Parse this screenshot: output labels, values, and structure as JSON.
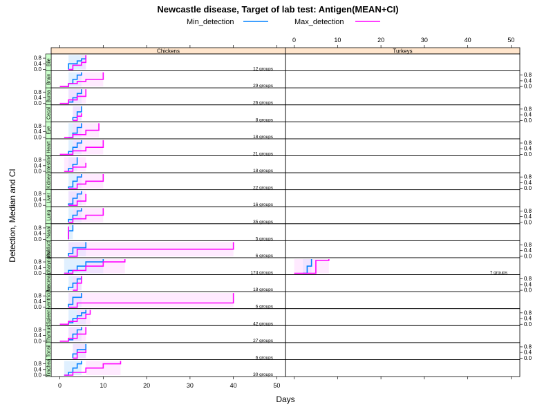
{
  "chart_data": {
    "type": "line",
    "title": "Newcastle disease, Target of lab test: Antigen(MEAN+CI)",
    "xlabel": "Days",
    "ylabel": "Detection, Median and CI",
    "xlim": [
      0,
      50
    ],
    "ylim": [
      0,
      1
    ],
    "x_ticks": [
      0,
      10,
      20,
      30,
      40,
      50
    ],
    "y_ticks": [
      "0.0",
      "0.4",
      "0.8"
    ],
    "legend": {
      "position": "top",
      "entries": [
        {
          "name": "Min_detection",
          "color": "#0080ff"
        },
        {
          "name": "Max_detection",
          "color": "#ff00ff"
        }
      ]
    },
    "panels": [
      "Chickens",
      "Turkeys"
    ],
    "rows": [
      {
        "strip": "Bile",
        "groups": {
          "Chickens": "12 groups"
        },
        "series": {
          "Chickens": {
            "Min_detection": {
              "x": [
                2,
                2,
                4,
                5,
                6
              ],
              "y": [
                0,
                0.4,
                0.6,
                0.75,
                1
              ]
            },
            "Max_detection": {
              "x": [
                2,
                3,
                5,
                6,
                6
              ],
              "y": [
                0,
                0.3,
                0.5,
                0.8,
                1
              ]
            }
          }
        }
      },
      {
        "strip": "Brain",
        "groups": {
          "Chickens": "29 groups"
        },
        "series": {
          "Chickens": {
            "Min_detection": {
              "x": [
                2,
                3,
                4,
                5
              ],
              "y": [
                0.2,
                0.5,
                0.8,
                1
              ]
            },
            "Max_detection": {
              "x": [
                0,
                2,
                4,
                6,
                10
              ],
              "y": [
                0,
                0.2,
                0.35,
                0.5,
                1
              ]
            }
          }
        }
      },
      {
        "strip": "Bursa",
        "groups": {
          "Chickens": "26 groups"
        },
        "series": {
          "Chickens": {
            "Min_detection": {
              "x": [
                2,
                3,
                4,
                5
              ],
              "y": [
                0.1,
                0.4,
                0.7,
                1
              ]
            },
            "Max_detection": {
              "x": [
                0,
                2,
                4,
                6
              ],
              "y": [
                0,
                0.25,
                0.5,
                1
              ]
            }
          }
        }
      },
      {
        "strip": "Cecal",
        "groups": {
          "Chickens": "8 groups"
        },
        "series": {
          "Chickens": {
            "Min_detection": {
              "x": [
                3,
                4,
                5
              ],
              "y": [
                0.2,
                0.6,
                1
              ]
            },
            "Max_detection": {
              "x": [
                3,
                4,
                5
              ],
              "y": [
                0,
                0.3,
                0.5
              ]
            }
          }
        }
      },
      {
        "strip": "Eye",
        "groups": {
          "Chickens": "18 groups"
        },
        "series": {
          "Chickens": {
            "Min_detection": {
              "x": [
                2,
                3,
                4,
                5
              ],
              "y": [
                0,
                0.3,
                0.7,
                1
              ]
            },
            "Max_detection": {
              "x": [
                1,
                3,
                6,
                9
              ],
              "y": [
                0,
                0.2,
                0.5,
                1
              ]
            }
          }
        }
      },
      {
        "strip": "Heart",
        "groups": {
          "Chickens": "21 groups"
        },
        "series": {
          "Chickens": {
            "Min_detection": {
              "x": [
                2,
                3,
                4,
                5
              ],
              "y": [
                0.2,
                0.5,
                0.8,
                1
              ]
            },
            "Max_detection": {
              "x": [
                0,
                3,
                6,
                10
              ],
              "y": [
                0,
                0.25,
                0.5,
                1
              ]
            }
          }
        }
      },
      {
        "strip": "Intestine",
        "groups": {
          "Chickens": "18 groups"
        },
        "series": {
          "Chickens": {
            "Min_detection": {
              "x": [
                2,
                3,
                4
              ],
              "y": [
                0.2,
                0.5,
                1
              ]
            },
            "Max_detection": {
              "x": [
                1,
                3,
                6
              ],
              "y": [
                0,
                0.3,
                0.6
              ]
            }
          }
        }
      },
      {
        "strip": "Kidney",
        "groups": {
          "Chickens": "22 groups"
        },
        "series": {
          "Chickens": {
            "Min_detection": {
              "x": [
                2,
                3,
                4,
                5
              ],
              "y": [
                0.1,
                0.5,
                0.8,
                1
              ]
            },
            "Max_detection": {
              "x": [
                2,
                4,
                6,
                10
              ],
              "y": [
                0,
                0.3,
                0.5,
                1
              ]
            }
          }
        }
      },
      {
        "strip": "Liver",
        "groups": {
          "Chickens": "16 groups"
        },
        "series": {
          "Chickens": {
            "Min_detection": {
              "x": [
                2,
                3,
                4,
                5
              ],
              "y": [
                0.1,
                0.5,
                0.8,
                1
              ]
            },
            "Max_detection": {
              "x": [
                2,
                4,
                6
              ],
              "y": [
                0,
                0.3,
                0.8
              ]
            }
          }
        }
      },
      {
        "strip": "Lung",
        "groups": {
          "Chickens": "35 groups"
        },
        "series": {
          "Chickens": {
            "Min_detection": {
              "x": [
                2,
                3,
                4,
                5
              ],
              "y": [
                0.2,
                0.5,
                0.8,
                1
              ]
            },
            "Max_detection": {
              "x": [
                2,
                3,
                6,
                10
              ],
              "y": [
                0,
                0.25,
                0.5,
                1
              ]
            }
          }
        }
      },
      {
        "strip": "Nasal",
        "groups": {
          "Chickens": "5 groups"
        },
        "series": {
          "Chickens": {
            "Min_detection": {
              "x": [
                2,
                2,
                3
              ],
              "y": [
                0,
                0.6,
                1
              ]
            },
            "Max_detection": {
              "x": [
                2,
                2
              ],
              "y": [
                0,
                0.9
              ]
            }
          }
        }
      },
      {
        "strip": "Oviduct",
        "groups": {
          "Chickens": "6 groups"
        },
        "series": {
          "Chickens": {
            "Min_detection": {
              "x": [
                2,
                3,
                6
              ],
              "y": [
                0.2,
                0.6,
                1
              ]
            },
            "Max_detection": {
              "x": [
                2,
                4,
                40
              ],
              "y": [
                0,
                0.5,
                1
              ]
            }
          }
        }
      },
      {
        "strip": "Oropharyngeal",
        "groups": {
          "Chickens": "174 groups",
          "Turkeys": "7 groups"
        },
        "series": {
          "Chickens": {
            "Min_detection": {
              "x": [
                1,
                2,
                4,
                6,
                10
              ],
              "y": [
                0,
                0.2,
                0.5,
                0.8,
                1
              ]
            },
            "Max_detection": {
              "x": [
                1,
                3,
                6,
                10,
                15
              ],
              "y": [
                0,
                0.2,
                0.5,
                0.8,
                1
              ]
            }
          },
          "Turkeys": {
            "Min_detection": {
              "x": [
                2,
                3,
                4
              ],
              "y": [
                0,
                0.5,
                1
              ]
            },
            "Max_detection": {
              "x": [
                0,
                5,
                8
              ],
              "y": [
                0,
                0.9,
                1
              ]
            }
          }
        }
      },
      {
        "strip": "Pancreas",
        "groups": {
          "Chickens": "18 groups"
        },
        "series": {
          "Chickens": {
            "Min_detection": {
              "x": [
                2,
                3,
                4,
                5
              ],
              "y": [
                0.2,
                0.5,
                0.8,
                1
              ]
            },
            "Max_detection": {
              "x": [
                3,
                4,
                5
              ],
              "y": [
                0,
                0.5,
                1
              ]
            }
          }
        }
      },
      {
        "strip": "Proventriculus",
        "groups": {
          "Chickens": "6 groups"
        },
        "series": {
          "Chickens": {
            "Min_detection": {
              "x": [
                2,
                3,
                5
              ],
              "y": [
                0.2,
                0.7,
                1
              ]
            },
            "Max_detection": {
              "x": [
                2,
                4,
                40
              ],
              "y": [
                0,
                0.3,
                1
              ]
            }
          }
        }
      },
      {
        "strip": "Spleen",
        "groups": {
          "Chickens": "42 groups"
        },
        "series": {
          "Chickens": {
            "Min_detection": {
              "x": [
                2,
                3,
                4,
                5,
                6
              ],
              "y": [
                0.1,
                0.4,
                0.6,
                0.8,
                1
              ]
            },
            "Max_detection": {
              "x": [
                0,
                2,
                4,
                6,
                7
              ],
              "y": [
                0,
                0.2,
                0.4,
                0.7,
                1
              ]
            }
          }
        }
      },
      {
        "strip": "Thymus",
        "groups": {
          "Chickens": "27 groups"
        },
        "series": {
          "Chickens": {
            "Min_detection": {
              "x": [
                2,
                3,
                4,
                5
              ],
              "y": [
                0.1,
                0.5,
                0.8,
                1
              ]
            },
            "Max_detection": {
              "x": [
                0,
                2,
                4,
                6
              ],
              "y": [
                0,
                0.2,
                0.5,
                1
              ]
            }
          }
        }
      },
      {
        "strip": "Tonsil",
        "groups": {
          "Chickens": "6 groups"
        },
        "series": {
          "Chickens": {
            "Min_detection": {
              "x": [
                3,
                4,
                6
              ],
              "y": [
                0.3,
                0.6,
                1
              ]
            },
            "Max_detection": {
              "x": [
                3,
                4,
                6
              ],
              "y": [
                0,
                0.4,
                0.6
              ]
            }
          }
        }
      },
      {
        "strip": "Trachea",
        "groups": {
          "Chickens": "30 groups"
        },
        "series": {
          "Chickens": {
            "Min_detection": {
              "x": [
                1,
                2,
                3,
                4,
                5
              ],
              "y": [
                0,
                0.2,
                0.5,
                0.8,
                1
              ]
            },
            "Max_detection": {
              "x": [
                1,
                3,
                6,
                10,
                14
              ],
              "y": [
                0,
                0.2,
                0.5,
                0.8,
                1
              ]
            }
          }
        }
      }
    ]
  },
  "colors": {
    "min_detection": "#0080ff",
    "max_detection": "#ff00ff",
    "min_band": "#cce6ff",
    "max_band": "#ffd5ff",
    "strip_fill": "#ffe5cc",
    "row_strip_fill": "#ccffcc"
  }
}
